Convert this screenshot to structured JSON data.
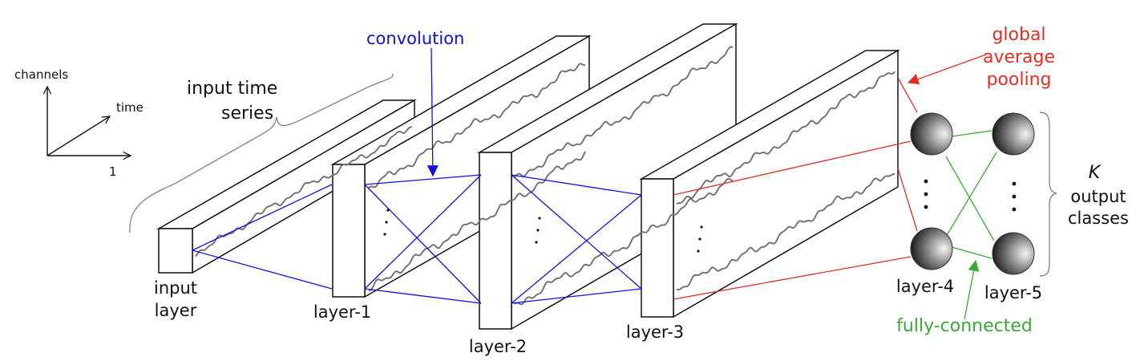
{
  "axes": {
    "channels_label": "channels",
    "time_label": "time",
    "one_label": "1"
  },
  "labels": {
    "input_time_series_line1": "input time",
    "input_time_series_line2": "series",
    "input_layer_line1": "input",
    "input_layer_line2": "layer",
    "layer1": "layer-1",
    "layer2": "layer-2",
    "layer3": "layer-3",
    "layer4": "layer-4",
    "layer5": "layer-5",
    "convolution": "convolution",
    "gap_line1": "global",
    "gap_line2": "average",
    "gap_line3": "pooling",
    "fully_connected": "fully-connected",
    "k_symbol": "K",
    "output_line1": "output",
    "output_line2": "classes"
  },
  "colors": {
    "convolution": "#1010e0",
    "pooling": "#e03020",
    "fully_connected": "#3aaa35",
    "signal": "#707070"
  }
}
